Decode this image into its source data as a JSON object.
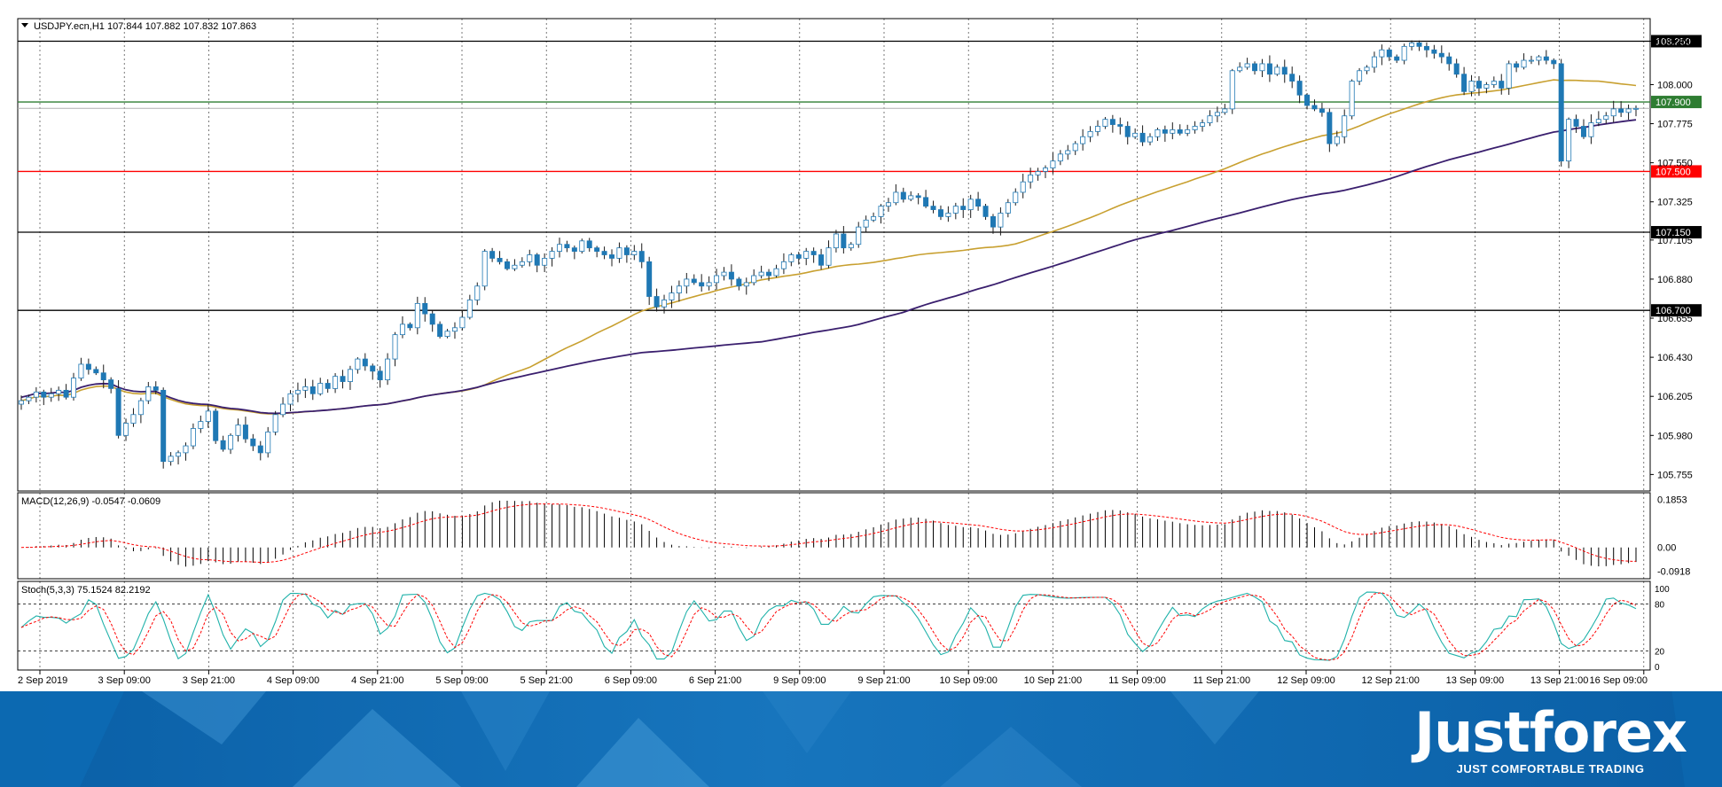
{
  "chart_data": {
    "type": "candlestick",
    "title": "USDJPY.ecn,H1  107.844 107.882 107.832 107.863",
    "ylim": [
      105.66,
      108.38
    ],
    "y_ticks": [
      "108.250",
      "108.000",
      "107.775",
      "107.550",
      "107.325",
      "107.105",
      "106.880",
      "106.655",
      "106.430",
      "106.205",
      "105.980",
      "105.755"
    ],
    "x_ticks": [
      "2 Sep 2019",
      "3 Sep 09:00",
      "3 Sep 21:00",
      "4 Sep 09:00",
      "4 Sep 21:00",
      "5 Sep 09:00",
      "5 Sep 21:00",
      "6 Sep 09:00",
      "6 Sep 21:00",
      "9 Sep 09:00",
      "9 Sep 21:00",
      "10 Sep 09:00",
      "10 Sep 21:00",
      "11 Sep 09:00",
      "11 Sep 21:00",
      "12 Sep 09:00",
      "12 Sep 21:00",
      "13 Sep 09:00",
      "13 Sep 21:00",
      "16 Sep 09:00"
    ],
    "grid": true,
    "close_series": [
      106.18,
      106.2,
      106.23,
      106.2,
      106.22,
      106.24,
      106.2,
      106.31,
      106.39,
      106.36,
      106.34,
      106.3,
      106.25,
      105.98,
      106.05,
      106.1,
      106.18,
      106.26,
      106.24,
      105.83,
      105.86,
      105.88,
      105.92,
      106.02,
      106.06,
      106.12,
      105.95,
      105.9,
      105.98,
      106.04,
      105.96,
      105.92,
      105.88,
      106.0,
      106.1,
      106.16,
      106.22,
      106.24,
      106.26,
      106.22,
      106.28,
      106.25,
      106.32,
      106.29,
      106.36,
      106.42,
      106.38,
      106.35,
      106.3,
      106.42,
      106.56,
      106.62,
      106.6,
      106.74,
      106.68,
      106.62,
      106.55,
      106.58,
      106.6,
      106.66,
      106.76,
      106.84,
      107.04,
      107.0,
      106.98,
      106.94,
      106.96,
      106.98,
      107.02,
      106.96,
      107.0,
      107.04,
      107.08,
      107.06,
      107.04,
      107.1,
      107.06,
      107.04,
      107.02,
      107.0,
      107.06,
      107.02,
      107.04,
      106.98,
      106.78,
      106.72,
      106.76,
      106.8,
      106.84,
      106.88,
      106.86,
      106.84,
      106.86,
      106.9,
      106.92,
      106.88,
      106.84,
      106.86,
      106.9,
      106.92,
      106.9,
      106.94,
      106.98,
      107.02,
      107.0,
      107.04,
      107.02,
      106.96,
      107.06,
      107.14,
      107.06,
      107.08,
      107.18,
      107.22,
      107.24,
      107.3,
      107.32,
      107.38,
      107.34,
      107.36,
      107.35,
      107.3,
      107.28,
      107.24,
      107.26,
      107.3,
      107.28,
      107.34,
      107.3,
      107.24,
      107.18,
      107.26,
      107.32,
      107.38,
      107.44,
      107.48,
      107.5,
      107.52,
      107.56,
      107.6,
      107.62,
      107.66,
      107.7,
      107.73,
      107.76,
      107.8,
      107.77,
      107.76,
      107.7,
      107.72,
      107.67,
      107.7,
      107.74,
      107.72,
      107.74,
      107.72,
      107.74,
      107.76,
      107.78,
      107.82,
      107.84,
      107.86,
      108.08,
      108.1,
      108.12,
      108.08,
      108.12,
      108.06,
      108.1,
      108.06,
      108.02,
      107.94,
      107.88,
      107.86,
      107.84,
      107.66,
      107.7,
      107.82,
      108.02,
      108.08,
      108.1,
      108.16,
      108.2,
      108.16,
      108.14,
      108.22,
      108.24,
      108.22,
      108.2,
      108.18,
      108.16,
      108.12,
      108.06,
      107.96,
      108.02,
      107.98,
      108.0,
      108.02,
      107.98,
      108.12,
      108.1,
      108.14,
      108.14,
      108.16,
      108.14,
      108.12,
      107.56,
      107.8,
      107.76,
      107.7,
      107.78,
      107.8,
      107.82,
      107.86,
      107.84,
      107.86,
      107.863
    ],
    "moving_averages": [
      {
        "period": "fast",
        "color": "#c8a030"
      },
      {
        "period": "slow",
        "color": "#3a1f6e"
      }
    ],
    "horizontal_levels": [
      {
        "value": 108.25,
        "label": "108.250",
        "color": "#000000"
      },
      {
        "value": 107.9,
        "label": "107.900",
        "color": "#2e7d32"
      },
      {
        "value": 107.5,
        "label": "107.500",
        "color": "#ff0000"
      },
      {
        "value": 107.15,
        "label": "107.150",
        "color": "#000000"
      },
      {
        "value": 106.7,
        "label": "106.700",
        "color": "#000000"
      }
    ],
    "current_price_label": "107.863",
    "macd": {
      "title": "MACD(12,26,9) -0.0547 -0.0609",
      "ylim": [
        -0.12,
        0.21
      ],
      "y_ticks": [
        "0.1853",
        "0.00",
        "-0.0918"
      ],
      "signal_color": "#ff0000"
    },
    "stochastic": {
      "title": "Stoch(5,3,3) 75.1524 82.2192",
      "y_ticks": [
        "100",
        "80",
        "20",
        "0"
      ],
      "levels": [
        80,
        20
      ],
      "main_color": "#20b2aa",
      "signal_color": "#ff0000"
    }
  },
  "footer": {
    "brand": "Justforex",
    "tagline": "JUST COMFORTABLE TRADING"
  },
  "colors": {
    "bull_candle": "#ffffff",
    "bear_candle": "#1f78b4",
    "candle_outline": "#1f78b4"
  }
}
